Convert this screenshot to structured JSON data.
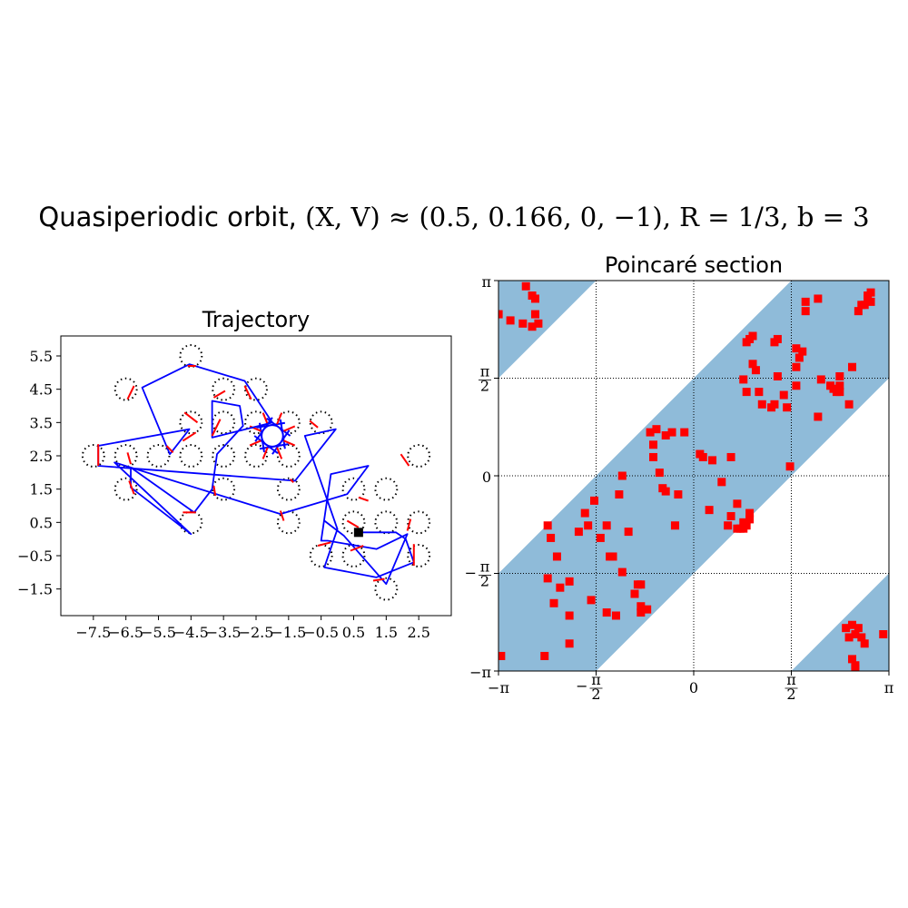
{
  "figure": {
    "title_text": "Quasiperiodic orbit, ",
    "title_math": "(X, V) ≈ (0.5, 0.166, 0, −1), R = 1/3, b = 3"
  },
  "chart_data": [
    {
      "type": "line",
      "title": "Trajectory",
      "xlabel": "",
      "ylabel": "",
      "xlim": [
        -8.5,
        3.5
      ],
      "ylim": [
        -2.3,
        6.1
      ],
      "x_ticks": [
        -7.5,
        -6.5,
        -5.5,
        -4.5,
        -3.5,
        -2.5,
        -1.5,
        -0.5,
        0.5,
        1.5,
        2.5
      ],
      "x_tick_labels": [
        "−7.5",
        "−6.5",
        "−5.5",
        "−4.5",
        "−3.5",
        "−2.5",
        "−1.5",
        "−0.5",
        "0.5",
        "1.5",
        "2.5"
      ],
      "y_ticks": [
        -1.5,
        -0.5,
        0.5,
        1.5,
        2.5,
        3.5,
        4.5,
        5.5
      ],
      "y_tick_labels": [
        "−1.5",
        "−0.5",
        "0.5",
        "1.5",
        "2.5",
        "3.5",
        "4.5",
        "5.5"
      ],
      "scatterer_radius": 0.3333,
      "scatterers": [
        [
          -4.5,
          5.5
        ],
        [
          -6.5,
          4.5
        ],
        [
          -3.5,
          4.5
        ],
        [
          -2.5,
          4.5
        ],
        [
          -4.5,
          3.5
        ],
        [
          -3.5,
          3.5
        ],
        [
          -2.5,
          3.5
        ],
        [
          -1.5,
          3.5
        ],
        [
          -0.5,
          3.5
        ],
        [
          -7.5,
          2.5
        ],
        [
          -6.5,
          2.5
        ],
        [
          -5.5,
          2.5
        ],
        [
          -4.5,
          2.5
        ],
        [
          -3.5,
          2.5
        ],
        [
          -2.5,
          2.5
        ],
        [
          -1.5,
          2.5
        ],
        [
          2.5,
          2.5
        ],
        [
          -6.5,
          1.5
        ],
        [
          -3.5,
          1.5
        ],
        [
          -1.5,
          1.5
        ],
        [
          0.5,
          1.5
        ],
        [
          1.5,
          1.5
        ],
        [
          -4.5,
          0.5
        ],
        [
          -1.5,
          0.5
        ],
        [
          0.5,
          0.5
        ],
        [
          1.5,
          0.5
        ],
        [
          2.5,
          0.5
        ],
        [
          -0.5,
          -0.5
        ],
        [
          0.5,
          -0.5
        ],
        [
          2.5,
          -0.5
        ],
        [
          1.5,
          -1.5
        ]
      ],
      "flight_path": [
        [
          0.65,
          0.2
        ],
        [
          1.8,
          0.2
        ],
        [
          2.1,
          0.0
        ],
        [
          2.35,
          -0.7
        ],
        [
          1.2,
          -1.15
        ],
        [
          -0.4,
          -0.85
        ],
        [
          0.0,
          0.3
        ],
        [
          -1.0,
          3.1
        ],
        [
          -0.05,
          3.3
        ],
        [
          -1.3,
          1.75
        ],
        [
          -7.35,
          2.2
        ],
        [
          -7.35,
          2.8
        ],
        [
          -4.55,
          3.3
        ],
        [
          -5.15,
          2.55
        ],
        [
          -6.0,
          4.55
        ],
        [
          -4.55,
          5.25
        ],
        [
          -2.85,
          4.75
        ],
        [
          -2.0,
          3.5
        ],
        [
          -3.85,
          3.05
        ],
        [
          -3.85,
          4.15
        ],
        [
          -3.0,
          4.0
        ],
        [
          -2.9,
          3.4
        ],
        [
          -3.7,
          2.55
        ],
        [
          -3.85,
          1.5
        ],
        [
          -4.4,
          0.8
        ],
        [
          -6.35,
          2.15
        ],
        [
          -6.35,
          1.55
        ],
        [
          -4.5,
          0.15
        ],
        [
          -6.85,
          2.3
        ],
        [
          -1.75,
          0.75
        ],
        [
          0.3,
          1.35
        ],
        [
          0.95,
          2.2
        ],
        [
          -0.2,
          1.95
        ],
        [
          -0.5,
          -0.05
        ],
        [
          -0.3,
          -0.05
        ],
        [
          1.2,
          -0.3
        ],
        [
          2.15,
          0.15
        ],
        [
          1.5,
          -1.35
        ],
        [
          0.2,
          0.1
        ],
        [
          -0.4,
          0.55
        ]
      ],
      "collision_segments": [
        [
          [
            -6.45,
            4.2
          ],
          [
            -6.25,
            4.6
          ]
        ],
        [
          [
            -4.6,
            5.2
          ],
          [
            -4.35,
            5.2
          ]
        ],
        [
          [
            -2.85,
            4.6
          ],
          [
            -2.65,
            4.2
          ]
        ],
        [
          [
            -3.8,
            4.25
          ],
          [
            -3.45,
            4.45
          ]
        ],
        [
          [
            -3.85,
            3.1
          ],
          [
            -3.6,
            3.6
          ]
        ],
        [
          [
            -4.7,
            3.8
          ],
          [
            -4.3,
            3.5
          ]
        ],
        [
          [
            -4.75,
            2.95
          ],
          [
            -4.35,
            3.2
          ]
        ],
        [
          [
            -5.25,
            2.8
          ],
          [
            -5.05,
            2.6
          ]
        ],
        [
          [
            -7.35,
            2.85
          ],
          [
            -7.35,
            2.2
          ]
        ],
        [
          [
            -6.4,
            1.75
          ],
          [
            -6.25,
            1.35
          ]
        ],
        [
          [
            -6.45,
            2.6
          ],
          [
            -6.35,
            2.25
          ]
        ],
        [
          [
            -3.8,
            1.6
          ],
          [
            -3.75,
            1.3
          ]
        ],
        [
          [
            -4.75,
            0.8
          ],
          [
            -4.35,
            0.8
          ]
        ],
        [
          [
            -1.75,
            0.85
          ],
          [
            -1.65,
            0.55
          ]
        ],
        [
          [
            -0.85,
            3.55
          ],
          [
            -0.6,
            3.35
          ]
        ],
        [
          [
            1.95,
            2.55
          ],
          [
            2.2,
            2.2
          ]
        ],
        [
          [
            0.65,
            1.25
          ],
          [
            0.95,
            1.15
          ]
        ],
        [
          [
            -0.6,
            -0.2
          ],
          [
            -0.2,
            -0.1
          ]
        ],
        [
          [
            0.3,
            0.55
          ],
          [
            0.65,
            0.35
          ]
        ],
        [
          [
            0.4,
            -0.35
          ],
          [
            0.8,
            -0.2
          ]
        ],
        [
          [
            2.35,
            -0.15
          ],
          [
            2.35,
            -0.8
          ]
        ],
        [
          [
            1.1,
            -1.25
          ],
          [
            1.45,
            -1.2
          ]
        ],
        [
          [
            2.15,
            0.25
          ],
          [
            2.25,
            0.6
          ]
        ],
        [
          [
            -1.45,
            1.8
          ],
          [
            -1.35,
            1.7
          ]
        ]
      ],
      "rosette_center": [
        -2.0,
        3.1
      ],
      "rosette_radius": 0.33,
      "end_marker": [
        0.65,
        0.2
      ],
      "colors": {
        "flight": "#0000ff",
        "collision": "#ff0000",
        "scatterer": "#000000",
        "marker": "#000000"
      }
    },
    {
      "type": "scatter",
      "title": "Poincaré section",
      "xlabel": "",
      "ylabel": "",
      "xlim": [
        -3.14159,
        3.14159
      ],
      "ylim": [
        -3.14159,
        3.14159
      ],
      "x_tick_labels": [
        "−π",
        "−π/2",
        "0",
        "π/2",
        "π"
      ],
      "y_tick_labels": [
        "−π",
        "−π/2",
        "0",
        "π/2",
        "π"
      ],
      "grid": true,
      "grid_style": "dotted",
      "shaded_band": "|y − x| ≤ π/2 (wrapped)",
      "colors": {
        "points": "#ff0000",
        "band": "#8fbbd9"
      },
      "points": [
        [
          -3.14,
          2.6
        ],
        [
          -2.95,
          2.5
        ],
        [
          -2.75,
          2.45
        ],
        [
          -2.6,
          2.4
        ],
        [
          -2.55,
          2.6
        ],
        [
          -2.5,
          2.45
        ],
        [
          -2.6,
          2.9
        ],
        [
          -2.55,
          2.85
        ],
        [
          -2.7,
          3.05
        ],
        [
          -3.1,
          -2.9
        ],
        [
          -2.4,
          -2.9
        ],
        [
          -2.35,
          -0.8
        ],
        [
          -2.3,
          -1.0
        ],
        [
          -2.2,
          -1.3
        ],
        [
          -2.35,
          -1.65
        ],
        [
          -2.15,
          -1.8
        ],
        [
          -2.25,
          -2.05
        ],
        [
          -2.0,
          -1.7
        ],
        [
          -2.0,
          -2.25
        ],
        [
          -2.0,
          -2.7
        ],
        [
          -1.85,
          -0.9
        ],
        [
          -1.75,
          -0.6
        ],
        [
          -1.7,
          -0.8
        ],
        [
          -1.6,
          -0.4
        ],
        [
          -1.65,
          -2.0
        ],
        [
          -1.5,
          -1.0
        ],
        [
          -1.4,
          -0.8
        ],
        [
          -1.35,
          -1.3
        ],
        [
          -1.3,
          -1.3
        ],
        [
          -1.4,
          -2.2
        ],
        [
          -1.25,
          -2.25
        ],
        [
          -1.2,
          -0.3
        ],
        [
          -1.15,
          0.0
        ],
        [
          -1.15,
          -1.55
        ],
        [
          -1.05,
          -0.9
        ],
        [
          -0.95,
          -1.9
        ],
        [
          -0.9,
          -1.75
        ],
        [
          -0.85,
          -1.75
        ],
        [
          -0.85,
          -2.1
        ],
        [
          -0.85,
          -2.2
        ],
        [
          -0.75,
          -2.15
        ],
        [
          -0.7,
          0.7
        ],
        [
          -0.65,
          0.5
        ],
        [
          -0.65,
          0.3
        ],
        [
          -0.6,
          0.75
        ],
        [
          -0.55,
          0.05
        ],
        [
          -0.5,
          -0.2
        ],
        [
          -0.45,
          0.65
        ],
        [
          -0.45,
          -0.25
        ],
        [
          -0.35,
          0.7
        ],
        [
          -0.3,
          -0.8
        ],
        [
          -0.25,
          -0.3
        ],
        [
          -0.15,
          0.7
        ],
        [
          0.1,
          0.35
        ],
        [
          0.15,
          0.3
        ],
        [
          0.3,
          0.25
        ],
        [
          0.25,
          -0.55
        ],
        [
          0.45,
          -0.1
        ],
        [
          0.6,
          0.3
        ],
        [
          0.55,
          -0.8
        ],
        [
          0.7,
          -0.85
        ],
        [
          0.75,
          -0.85
        ],
        [
          0.6,
          -0.65
        ],
        [
          0.8,
          -0.85
        ],
        [
          0.7,
          -0.45
        ],
        [
          0.8,
          -0.75
        ],
        [
          0.85,
          -0.8
        ],
        [
          0.9,
          -0.6
        ],
        [
          0.9,
          -0.7
        ],
        [
          0.8,
          1.55
        ],
        [
          0.85,
          1.35
        ],
        [
          0.85,
          2.15
        ],
        [
          0.9,
          2.2
        ],
        [
          0.95,
          2.25
        ],
        [
          0.95,
          1.8
        ],
        [
          1.0,
          1.7
        ],
        [
          1.05,
          1.35
        ],
        [
          1.1,
          1.15
        ],
        [
          1.25,
          1.1
        ],
        [
          1.3,
          1.15
        ],
        [
          1.35,
          1.6
        ],
        [
          1.45,
          1.3
        ],
        [
          1.5,
          1.1
        ],
        [
          1.65,
          1.45
        ],
        [
          1.7,
          1.9
        ],
        [
          1.8,
          2.65
        ],
        [
          1.65,
          1.75
        ],
        [
          1.35,
          2.2
        ],
        [
          1.3,
          2.15
        ],
        [
          1.55,
          0.15
        ],
        [
          1.65,
          2.05
        ],
        [
          1.75,
          2.0
        ],
        [
          1.8,
          2.8
        ],
        [
          2.0,
          0.95
        ],
        [
          2.0,
          2.85
        ],
        [
          2.05,
          1.55
        ],
        [
          2.2,
          1.45
        ],
        [
          2.25,
          1.4
        ],
        [
          2.3,
          1.35
        ],
        [
          2.35,
          1.35
        ],
        [
          2.35,
          1.45
        ],
        [
          2.35,
          1.6
        ],
        [
          2.55,
          1.75
        ],
        [
          2.65,
          2.65
        ],
        [
          2.7,
          2.75
        ],
        [
          2.8,
          2.85
        ],
        [
          2.85,
          2.95
        ],
        [
          2.75,
          2.75
        ],
        [
          2.85,
          2.8
        ],
        [
          2.8,
          2.9
        ],
        [
          2.5,
          1.15
        ],
        [
          2.45,
          -2.45
        ],
        [
          2.55,
          -2.4
        ],
        [
          2.6,
          -2.55
        ],
        [
          2.65,
          -2.45
        ],
        [
          2.5,
          -2.6
        ],
        [
          2.55,
          -2.95
        ],
        [
          2.6,
          -3.05
        ],
        [
          2.6,
          -3.1
        ],
        [
          2.7,
          -2.6
        ],
        [
          2.75,
          -2.7
        ],
        [
          3.05,
          -2.55
        ]
      ]
    }
  ]
}
